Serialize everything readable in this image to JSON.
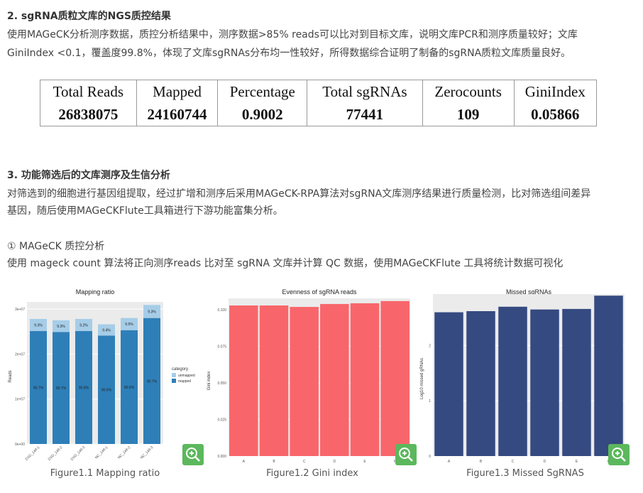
{
  "section2": {
    "title": "2. sgRNA质粒文库的NGS质控结果",
    "text_line1": "使用MAGeCK分析测序数据，质控分析结果中，测序数据>85% reads可以比对到目标文库，说明文库PCR和测序质量较好；文库",
    "text_line2": "GiniIndex <0.1，覆盖度99.8%，体现了文库sgRNAs分布均一性较好，所得数据综合证明了制备的sgRNA质粒文库质量良好。"
  },
  "qc_table": {
    "headers": [
      "Total Reads",
      "Mapped",
      "Percentage",
      "Total sgRNAs",
      "Zerocounts",
      "GiniIndex"
    ],
    "values": [
      "26838075",
      "24160744",
      "0.9002",
      "77441",
      "109",
      "0.05866"
    ]
  },
  "section3": {
    "title": "3. 功能筛选后的文库测序及生信分析",
    "text_line1": "对筛选到的细胞进行基因组提取，经过扩增和测序后采用MAGeCK-RPA算法对sgRNA文库测序结果进行质量检测，比对筛选组间差异",
    "text_line2": "基因，随后使用MAGeCKFlute工具箱进行下游功能富集分析。",
    "sub_title": "① MAGeCK 质控分析",
    "sub_text": "使用 mageck count 算法将正向测序reads 比对至 sgRNA 文库并计算 QC 数据，使用MAGeCKFlute 工具将统计数据可视化"
  },
  "figures": {
    "fig1_caption": "Figure1.1 Mapping ratio",
    "fig2_caption": "Figure1.2 Gini index",
    "fig3_caption": "Figure1.3 Missed SgRNAS"
  },
  "colors": {
    "zoom": "#5cb85c",
    "mapped": "#2e7fb8",
    "unmapped": "#a6cde8",
    "gini": "#f8666b",
    "missed": "#354a80"
  },
  "icons": {
    "zoom": "zoom-in-icon"
  },
  "chart_data": [
    {
      "type": "bar",
      "stacked": true,
      "title": "Mapping ratio",
      "xlabel": "",
      "ylabel": "Reads",
      "categories": [
        "DXD_148-1",
        "DXD_148-2",
        "DXD_148-3",
        "NC_148-1",
        "NC_148-2",
        "NC_148-3"
      ],
      "series": [
        {
          "name": "mapped",
          "values": [
            25100000,
            24900000,
            25100000,
            24100000,
            25300000,
            28000000
          ],
          "labels": [
            "90.7%",
            "90.7%",
            "90.8%",
            "90.6%",
            "90.5%",
            "90.7%"
          ]
        },
        {
          "name": "unmapped",
          "values": [
            2700000,
            2600000,
            2700000,
            2500000,
            2700000,
            2900000
          ],
          "labels": [
            "9.3%",
            "9.3%",
            "9.2%",
            "9.4%",
            "9.5%",
            "9.3%"
          ]
        }
      ],
      "ylim": [
        0,
        30000000
      ],
      "yticks": [
        "0e+00",
        "1e+07",
        "2e+07",
        "3e+07"
      ],
      "legend_title": "category",
      "legend_position": "right"
    },
    {
      "type": "bar",
      "title": "Evenness of sgRNA reads",
      "xlabel": "",
      "ylabel": "Gini index",
      "categories": [
        "A",
        "B",
        "C",
        "D",
        "E",
        "F"
      ],
      "values": [
        0.103,
        0.103,
        0.102,
        0.104,
        0.1045,
        0.106
      ],
      "ylim": [
        0,
        0.103
      ],
      "yticks": [
        "0.000",
        "0.025",
        "0.050",
        "0.075",
        "0.100"
      ]
    },
    {
      "type": "bar",
      "title": "Missed sgRNAs",
      "xlabel": "",
      "ylabel": "Log10 missed gRNAs",
      "categories": [
        "A",
        "B",
        "C",
        "D",
        "E",
        "F"
      ],
      "values": [
        2.6,
        2.62,
        2.7,
        2.65,
        2.66,
        2.9
      ],
      "ylim": [
        0,
        2.8
      ],
      "yticks": [
        "0",
        "1",
        "2"
      ]
    }
  ]
}
